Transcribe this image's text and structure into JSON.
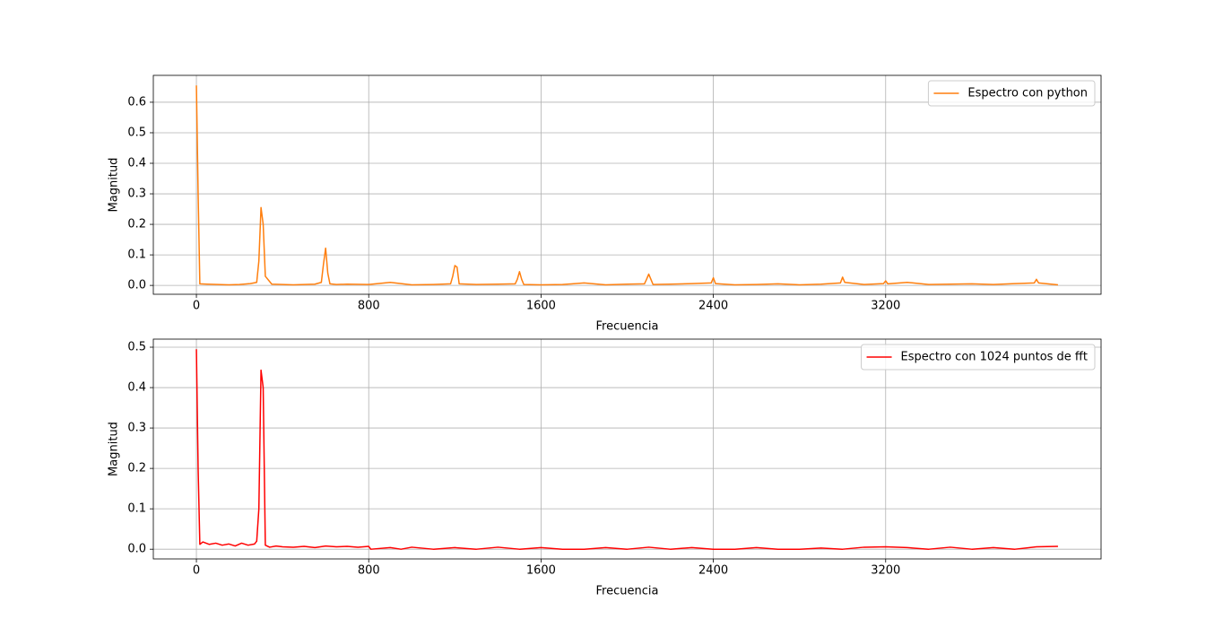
{
  "chart_data": [
    {
      "type": "line",
      "xlabel": "Frecuencia",
      "ylabel": "Magnitud",
      "grid": true,
      "legend": "upper right",
      "xlim": [
        -200,
        4200
      ],
      "xticks": [
        0,
        800,
        1600,
        2400,
        3200
      ],
      "ylim": [
        -0.029,
        0.688
      ],
      "yticks": [
        {
          "value": 0,
          "label": "0.0"
        },
        0.1,
        0.2,
        0.3,
        0.4,
        0.5,
        0.6
      ],
      "x": [
        0,
        8,
        16,
        50,
        100,
        150,
        200,
        250,
        280,
        290,
        300,
        310,
        320,
        350,
        400,
        450,
        500,
        550,
        580,
        590,
        600,
        610,
        620,
        650,
        700,
        800,
        900,
        1000,
        1100,
        1180,
        1190,
        1200,
        1210,
        1220,
        1300,
        1400,
        1480,
        1490,
        1500,
        1510,
        1520,
        1600,
        1700,
        1800,
        1900,
        2000,
        2080,
        2090,
        2100,
        2110,
        2120,
        2200,
        2300,
        2390,
        2400,
        2410,
        2500,
        2600,
        2700,
        2800,
        2900,
        2990,
        3000,
        3010,
        3100,
        3190,
        3200,
        3210,
        3300,
        3400,
        3500,
        3600,
        3700,
        3800,
        3890,
        3900,
        3910,
        4000
      ],
      "series": [
        {
          "name": "Espectro con python",
          "color": "#ff7f0e",
          "values": [
            0.655,
            0.3,
            0.005,
            0.004,
            0.003,
            0.002,
            0.003,
            0.006,
            0.01,
            0.08,
            0.255,
            0.2,
            0.03,
            0.004,
            0.003,
            0.002,
            0.003,
            0.004,
            0.01,
            0.07,
            0.122,
            0.04,
            0.005,
            0.003,
            0.004,
            0.003,
            0.01,
            0.002,
            0.003,
            0.005,
            0.03,
            0.065,
            0.06,
            0.005,
            0.003,
            0.004,
            0.005,
            0.02,
            0.045,
            0.02,
            0.003,
            0.002,
            0.003,
            0.008,
            0.002,
            0.004,
            0.005,
            0.02,
            0.037,
            0.02,
            0.003,
            0.004,
            0.006,
            0.008,
            0.025,
            0.006,
            0.002,
            0.003,
            0.005,
            0.002,
            0.004,
            0.008,
            0.027,
            0.01,
            0.003,
            0.006,
            0.015,
            0.005,
            0.01,
            0.003,
            0.004,
            0.005,
            0.003,
            0.006,
            0.008,
            0.02,
            0.008,
            0.002
          ]
        }
      ]
    },
    {
      "type": "line",
      "xlabel": "Frecuencia",
      "ylabel": "Magnitud",
      "grid": true,
      "legend": "upper right",
      "xlim": [
        -200,
        4200
      ],
      "xticks": [
        0,
        800,
        1600,
        2400,
        3200
      ],
      "ylim": [
        -0.024,
        0.52
      ],
      "yticks": [
        {
          "value": 0,
          "label": "0.0"
        },
        0.1,
        0.2,
        0.3,
        0.4,
        0.5
      ],
      "x": [
        0,
        8,
        16,
        30,
        60,
        90,
        120,
        150,
        180,
        210,
        240,
        270,
        280,
        290,
        300,
        310,
        320,
        340,
        370,
        400,
        450,
        500,
        550,
        600,
        650,
        700,
        750,
        800,
        810,
        900,
        950,
        1000,
        1100,
        1200,
        1300,
        1400,
        1500,
        1600,
        1700,
        1800,
        1900,
        2000,
        2100,
        2200,
        2300,
        2400,
        2500,
        2600,
        2700,
        2800,
        2900,
        3000,
        3100,
        3200,
        3300,
        3400,
        3500,
        3600,
        3700,
        3800,
        3900,
        4000
      ],
      "series": [
        {
          "name": "Espectro con 1024 puntos de fft",
          "color": "#ff0000",
          "values": [
            0.495,
            0.2,
            0.012,
            0.018,
            0.012,
            0.015,
            0.01,
            0.013,
            0.008,
            0.015,
            0.01,
            0.013,
            0.02,
            0.1,
            0.443,
            0.4,
            0.01,
            0.005,
            0.008,
            0.006,
            0.005,
            0.007,
            0.004,
            0.008,
            0.006,
            0.007,
            0.005,
            0.007,
            0.0,
            0.004,
            0.0,
            0.005,
            0.0,
            0.004,
            0.0,
            0.005,
            0.0,
            0.004,
            0.0,
            0.0,
            0.004,
            0.0,
            0.005,
            0.0,
            0.004,
            0.0,
            0.0,
            0.004,
            0.0,
            0.0,
            0.003,
            0.0,
            0.005,
            0.006,
            0.004,
            0.0,
            0.005,
            0.0,
            0.004,
            0.0,
            0.006,
            0.007
          ]
        }
      ]
    }
  ]
}
